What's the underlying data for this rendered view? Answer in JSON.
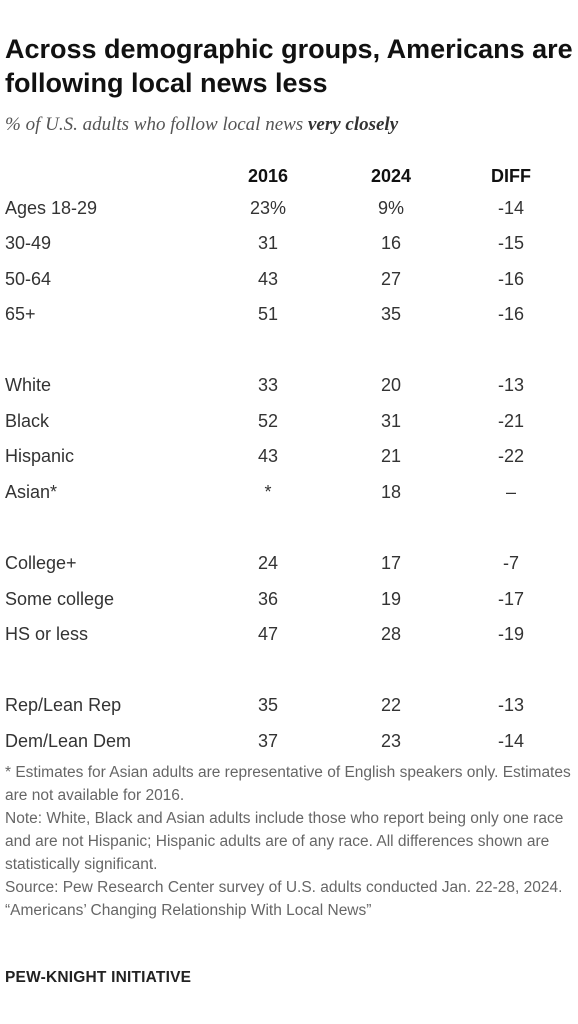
{
  "chart_data": {
    "type": "table",
    "title": "Across demographic groups, Americans are following local news less",
    "subtitle_prefix": "% of U.S. adults who follow local news",
    "subtitle_emphasis": "very closely",
    "columns": [
      "2016",
      "2024",
      "DIFF"
    ],
    "rows": [
      {
        "label": "Ages 18-29",
        "v2016": "23%",
        "v2024": "9%",
        "diff": "-14"
      },
      {
        "label": "30-49",
        "v2016": "31",
        "v2024": "16",
        "diff": "-15"
      },
      {
        "label": "50-64",
        "v2016": "43",
        "v2024": "27",
        "diff": "-16"
      },
      {
        "label": "65+",
        "v2016": "51",
        "v2024": "35",
        "diff": "-16"
      },
      {
        "label": "White",
        "v2016": "33",
        "v2024": "20",
        "diff": "-13"
      },
      {
        "label": "Black",
        "v2016": "52",
        "v2024": "31",
        "diff": "-21"
      },
      {
        "label": "Hispanic",
        "v2016": "43",
        "v2024": "21",
        "diff": "-22"
      },
      {
        "label": "Asian*",
        "v2016": "*",
        "v2024": "18",
        "diff": "–"
      },
      {
        "label": "College+",
        "v2016": "24",
        "v2024": "17",
        "diff": "-7"
      },
      {
        "label": "Some college",
        "v2016": "36",
        "v2024": "19",
        "diff": "-17"
      },
      {
        "label": "HS or less",
        "v2016": "47",
        "v2024": "28",
        "diff": "-19"
      },
      {
        "label": "Rep/Lean Rep",
        "v2016": "35",
        "v2024": "22",
        "diff": "-13"
      },
      {
        "label": "Dem/Lean Dem",
        "v2016": "37",
        "v2024": "23",
        "diff": "-14"
      }
    ]
  },
  "notes": [
    "* Estimates for Asian adults are representative of English speakers only. Estimates are not available for 2016.",
    "Note: White, Black and Asian adults include those who report being only one race and are not Hispanic; Hispanic adults are of any race. All differences shown are statistically significant.",
    "Source: Pew Research Center survey of U.S. adults conducted Jan. 22-28, 2024.",
    "“Americans’ Changing Relationship With Local News”"
  ],
  "brand": "PEW-KNIGHT INITIATIVE",
  "colors": {
    "text": "#333333",
    "title": "#111111",
    "notes": "#666666"
  }
}
